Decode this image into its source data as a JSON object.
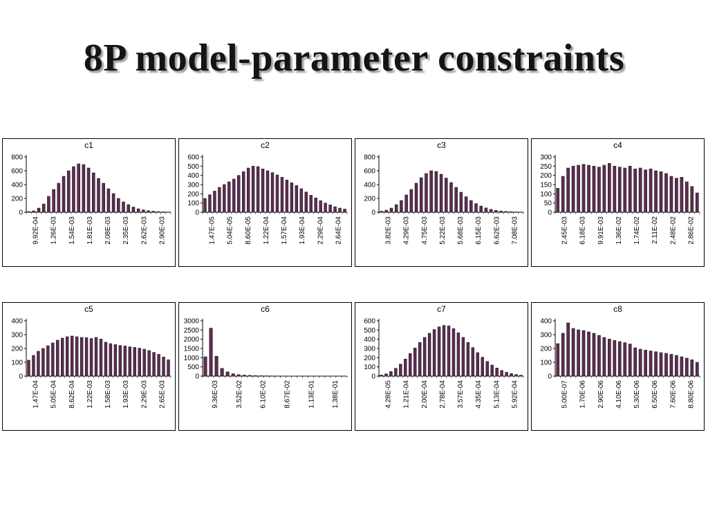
{
  "slide": {
    "title": "8P model-parameter constraints",
    "background": "#ffffff"
  },
  "colors": {
    "bar_fill": "#5e2c52",
    "bar_stroke": "#1a1a1a",
    "axis": "#000000",
    "tick_text": "#000000",
    "title_text": "#141414"
  },
  "chart_data": [
    {
      "type": "bar",
      "title": "c1",
      "xlabel": "",
      "ylabel": "",
      "grid": false,
      "legend": "none",
      "ylim": [
        0,
        800
      ],
      "y_ticks": [
        0,
        200,
        400,
        600,
        800
      ],
      "x_tick_labels": [
        "9.92E-04",
        "1.26E-03",
        "1.54E-03",
        "1.81E-03",
        "2.08E-03",
        "2.35E-03",
        "2.62E-03",
        "2.90E-03"
      ],
      "values": [
        10,
        20,
        60,
        120,
        230,
        330,
        420,
        520,
        600,
        660,
        700,
        690,
        640,
        570,
        490,
        420,
        340,
        270,
        200,
        150,
        110,
        75,
        50,
        35,
        22,
        15,
        10,
        6,
        4
      ]
    },
    {
      "type": "bar",
      "title": "c2",
      "xlabel": "",
      "ylabel": "",
      "grid": false,
      "legend": "none",
      "ylim": [
        0,
        600
      ],
      "y_ticks": [
        0,
        100,
        200,
        300,
        400,
        500,
        600
      ],
      "x_tick_labels": [
        "1.47E-05",
        "5.04E-05",
        "8.60E-05",
        "1.22E-04",
        "1.57E-04",
        "1.93E-04",
        "2.29E-04",
        "2.64E-04"
      ],
      "values": [
        150,
        190,
        230,
        270,
        300,
        330,
        360,
        400,
        440,
        480,
        500,
        495,
        470,
        450,
        430,
        405,
        380,
        350,
        320,
        290,
        255,
        220,
        185,
        155,
        125,
        100,
        80,
        60,
        45,
        35
      ]
    },
    {
      "type": "bar",
      "title": "c3",
      "xlabel": "",
      "ylabel": "",
      "grid": false,
      "legend": "none",
      "ylim": [
        0,
        800
      ],
      "y_ticks": [
        0,
        200,
        400,
        600,
        800
      ],
      "x_tick_labels": [
        "3.82E-03",
        "4.29E-03",
        "4.75E-03",
        "5.22E-03",
        "5.68E-03",
        "6.15E-03",
        "6.62E-03",
        "7.08E-03"
      ],
      "values": [
        15,
        30,
        60,
        110,
        170,
        250,
        330,
        420,
        500,
        560,
        600,
        590,
        550,
        495,
        430,
        360,
        290,
        225,
        170,
        125,
        90,
        62,
        42,
        28,
        18,
        12,
        8,
        5,
        3
      ]
    },
    {
      "type": "bar",
      "title": "c4",
      "xlabel": "",
      "ylabel": "",
      "grid": false,
      "legend": "none",
      "ylim": [
        0,
        300
      ],
      "y_ticks": [
        0,
        50,
        100,
        150,
        200,
        250,
        300
      ],
      "x_tick_labels": [
        "2.45E-03",
        "6.18E-03",
        "9.91E-03",
        "1.36E-02",
        "1.74E-02",
        "2.11E-02",
        "2.48E-02",
        "2.86E-02"
      ],
      "values": [
        130,
        195,
        240,
        250,
        255,
        260,
        255,
        250,
        245,
        255,
        265,
        250,
        245,
        240,
        250,
        235,
        240,
        230,
        235,
        225,
        220,
        210,
        195,
        185,
        190,
        165,
        140,
        105
      ]
    },
    {
      "type": "bar",
      "title": "c5",
      "xlabel": "",
      "ylabel": "",
      "grid": false,
      "legend": "none",
      "ylim": [
        0,
        400
      ],
      "y_ticks": [
        0,
        100,
        200,
        300,
        400
      ],
      "x_tick_labels": [
        "1.47E-04",
        "5.05E-04",
        "8.62E-04",
        "1.22E-03",
        "1.58E-03",
        "1.93E-03",
        "2.29E-03",
        "2.65E-03"
      ],
      "values": [
        115,
        150,
        180,
        200,
        220,
        240,
        260,
        275,
        285,
        290,
        285,
        280,
        278,
        272,
        280,
        268,
        245,
        235,
        228,
        222,
        218,
        212,
        208,
        202,
        195,
        185,
        172,
        158,
        138,
        118
      ]
    },
    {
      "type": "bar",
      "title": "c6",
      "xlabel": "",
      "ylabel": "",
      "grid": false,
      "legend": "none",
      "ylim": [
        0,
        3000
      ],
      "y_ticks": [
        0,
        500,
        1000,
        1500,
        2000,
        2500,
        3000
      ],
      "x_tick_labels": [
        "9.36E-03",
        "3.52E-02",
        "6.10E-02",
        "8.67E-02",
        "1.13E-01",
        "1.38E-01"
      ],
      "values": [
        1050,
        2600,
        1080,
        420,
        230,
        130,
        80,
        55,
        40,
        30,
        22,
        17,
        13,
        10,
        8,
        7,
        6,
        5,
        4,
        4,
        3,
        3,
        3,
        2,
        2,
        2
      ]
    },
    {
      "type": "bar",
      "title": "c7",
      "xlabel": "",
      "ylabel": "",
      "grid": false,
      "legend": "none",
      "ylim": [
        0,
        600
      ],
      "y_ticks": [
        0,
        100,
        200,
        300,
        400,
        500,
        600
      ],
      "x_tick_labels": [
        "4.28E-05",
        "1.21E-04",
        "2.00E-04",
        "2.78E-04",
        "3.57E-04",
        "4.35E-04",
        "5.13E-04",
        "5.92E-04"
      ],
      "values": [
        12,
        25,
        50,
        85,
        130,
        185,
        245,
        305,
        365,
        420,
        465,
        505,
        535,
        550,
        545,
        515,
        470,
        420,
        365,
        310,
        255,
        205,
        160,
        120,
        88,
        62,
        42,
        28,
        18,
        10
      ]
    },
    {
      "type": "bar",
      "title": "c8",
      "xlabel": "",
      "ylabel": "",
      "grid": false,
      "legend": "none",
      "ylim": [
        0,
        400
      ],
      "y_ticks": [
        0,
        100,
        200,
        300,
        400
      ],
      "x_tick_labels": [
        "5.00E-07",
        "1.70E-06",
        "2.90E-06",
        "4.10E-06",
        "5.30E-06",
        "6.50E-06",
        "7.60E-06",
        "8.80E-06"
      ],
      "values": [
        235,
        310,
        385,
        345,
        335,
        330,
        320,
        310,
        295,
        280,
        268,
        258,
        250,
        242,
        232,
        205,
        195,
        188,
        182,
        176,
        170,
        165,
        158,
        150,
        140,
        130,
        118,
        100
      ]
    }
  ]
}
